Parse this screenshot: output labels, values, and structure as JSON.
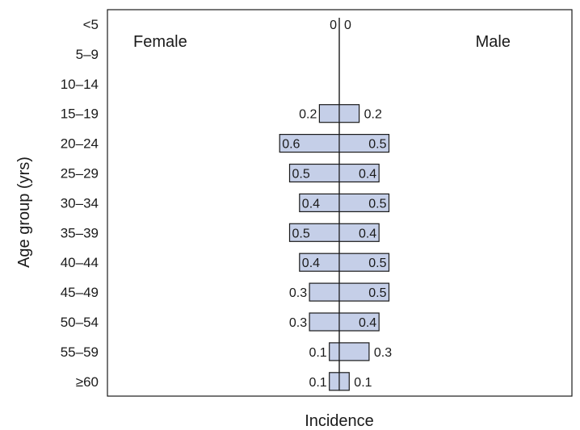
{
  "chart_data": {
    "type": "bar",
    "subtype": "population-pyramid",
    "title": "",
    "xlabel": "Incidence",
    "ylabel": "Age group (yrs)",
    "categories": [
      "<5",
      "5–9",
      "10–14",
      "15–19",
      "20–24",
      "25–29",
      "30–34",
      "35–39",
      "40–44",
      "45–49",
      "50–54",
      "55–59",
      "≥60"
    ],
    "series": [
      {
        "name": "Female",
        "side": "left",
        "values": [
          0,
          null,
          null,
          0.2,
          0.6,
          0.5,
          0.4,
          0.5,
          0.4,
          0.3,
          0.3,
          0.1,
          0.1
        ]
      },
      {
        "name": "Male",
        "side": "right",
        "values": [
          0,
          null,
          null,
          0.2,
          0.5,
          0.4,
          0.5,
          0.4,
          0.5,
          0.5,
          0.4,
          0.3,
          0.1
        ]
      }
    ],
    "value_labels": {
      "Female": [
        "0",
        "",
        "",
        "0.2",
        "0.6",
        "0.5",
        "0.4",
        "0.5",
        "0.4",
        "0.3",
        "0.3",
        "0.1",
        "0.1"
      ],
      "Male": [
        "0",
        "",
        "",
        "0.2",
        "0.5",
        "0.4",
        "0.5",
        "0.4",
        "0.5",
        "0.5",
        "0.4",
        "0.3",
        "0.1"
      ]
    },
    "bar_color": "#c5cfe8",
    "bar_stroke": "#1a1a1a",
    "legend": "top"
  }
}
